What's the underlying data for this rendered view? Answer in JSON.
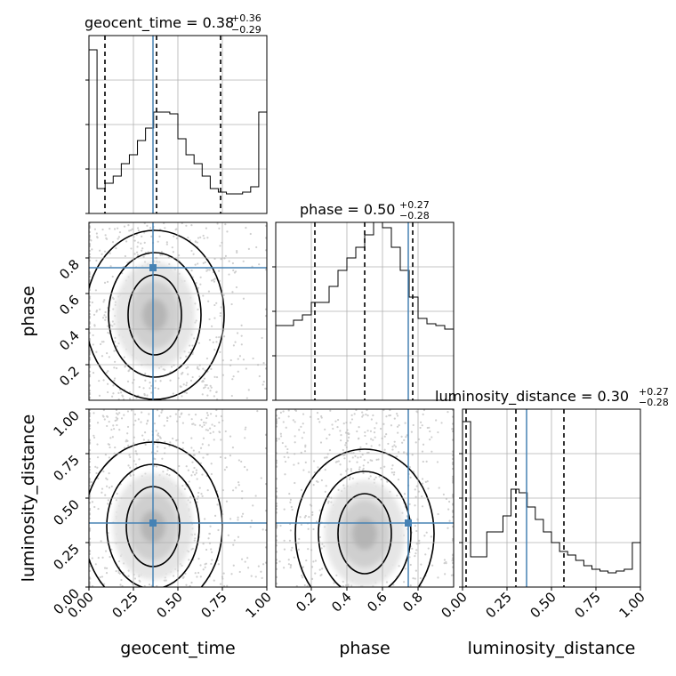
{
  "chart_data": {
    "type": "corner",
    "parameters": [
      "geocent_time",
      "phase",
      "luminosity_distance"
    ],
    "titles": [
      {
        "name": "geocent_time",
        "median": "0.38",
        "plus": "+0.36",
        "minus": "−0.29"
      },
      {
        "name": "phase",
        "median": "0.50",
        "plus": "+0.27",
        "minus": "−0.28"
      },
      {
        "name": "luminosity_distance",
        "median": "0.30",
        "plus": "+0.27",
        "minus": "−0.28"
      }
    ],
    "axis_labels": {
      "x": [
        "geocent_time",
        "phase",
        "luminosity_distance"
      ],
      "y": [
        "phase",
        "luminosity_distance"
      ]
    },
    "ranges": {
      "geocent_time": [
        0.0,
        1.0
      ],
      "phase": [
        0.0,
        1.0
      ],
      "luminosity_distance": [
        0.0,
        1.0
      ]
    },
    "tick_labels": {
      "geocent_time": [
        "0.00",
        "0.25",
        "0.50",
        "0.75",
        "1.00"
      ],
      "phase": [
        "0.2",
        "0.4",
        "0.6",
        "0.8"
      ],
      "luminosity_distance": [
        "0.00",
        "0.25",
        "0.50",
        "0.75",
        "1.00"
      ]
    },
    "truths": {
      "geocent_time": 0.36,
      "phase": 0.745,
      "luminosity_distance": 0.36
    },
    "quantiles": {
      "geocent_time": [
        0.09,
        0.38,
        0.74
      ],
      "phase": [
        0.22,
        0.5,
        0.77
      ],
      "luminosity_distance": [
        0.02,
        0.3,
        0.57
      ]
    },
    "histograms": {
      "geocent_time": [
        0.92,
        0.14,
        0.17,
        0.21,
        0.28,
        0.33,
        0.41,
        0.48,
        0.57,
        0.57,
        0.56,
        0.42,
        0.33,
        0.28,
        0.21,
        0.14,
        0.12,
        0.11,
        0.11,
        0.12,
        0.15,
        0.57
      ],
      "phase": [
        0.42,
        0.42,
        0.45,
        0.48,
        0.55,
        0.55,
        0.64,
        0.73,
        0.8,
        0.86,
        0.93,
        1.0,
        0.97,
        0.86,
        0.73,
        0.58,
        0.46,
        0.43,
        0.42,
        0.4
      ],
      "luminosity_distance": [
        0.93,
        0.17,
        0.17,
        0.31,
        0.31,
        0.4,
        0.55,
        0.53,
        0.45,
        0.38,
        0.31,
        0.25,
        0.2,
        0.18,
        0.15,
        0.12,
        0.1,
        0.09,
        0.08,
        0.09,
        0.1,
        0.25
      ]
    },
    "grid": true
  }
}
